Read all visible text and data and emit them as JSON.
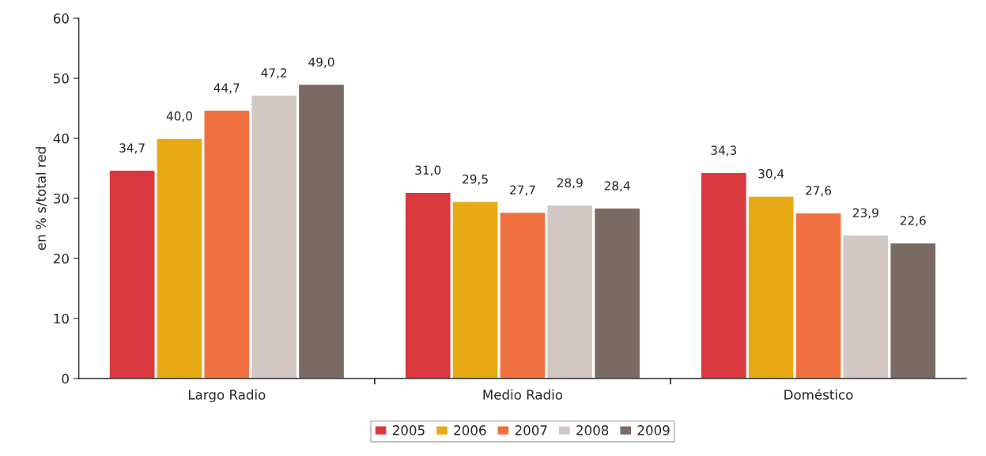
{
  "chart_data": {
    "type": "bar",
    "ylabel": "en % s/total red",
    "categories": [
      "Largo Radio",
      "Medio Radio",
      "Doméstico"
    ],
    "series": [
      {
        "name": "2005",
        "color": "#d9393e",
        "values": [
          34.7,
          31.0,
          34.3
        ],
        "value_labels": [
          "34,7",
          "31,0",
          "34,3"
        ]
      },
      {
        "name": "2006",
        "color": "#e8aa14",
        "values": [
          40.0,
          29.5,
          30.4
        ],
        "value_labels": [
          "40,0",
          "29,5",
          "30,4"
        ]
      },
      {
        "name": "2007",
        "color": "#f07040",
        "values": [
          44.7,
          27.7,
          27.6
        ],
        "value_labels": [
          "44,7",
          "27,7",
          "27,6"
        ]
      },
      {
        "name": "2008",
        "color": "#d2c8c3",
        "values": [
          47.2,
          28.9,
          23.9
        ],
        "value_labels": [
          "47,2",
          "28,9",
          "23,9"
        ]
      },
      {
        "name": "2009",
        "color": "#7a6a62",
        "values": [
          49.0,
          28.4,
          22.6
        ],
        "value_labels": [
          "49,0",
          "28,4",
          "22,6"
        ]
      }
    ],
    "ylim": [
      0,
      60
    ],
    "yticks": [
      0,
      10,
      20,
      30,
      40,
      50,
      60
    ],
    "grid": false,
    "legend": "bottom"
  }
}
